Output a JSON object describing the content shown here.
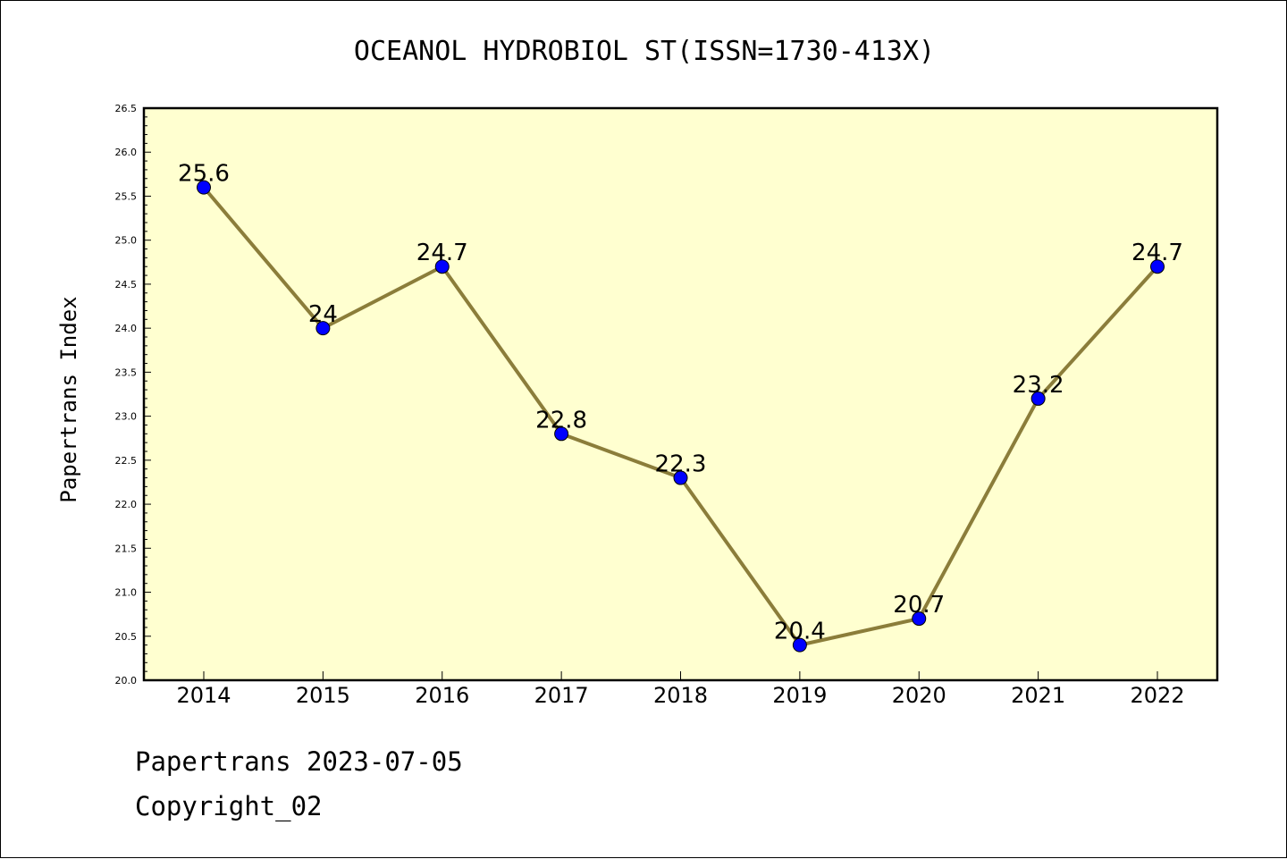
{
  "footer": {
    "line1": "Papertrans 2023-07-05",
    "line2": "Copyright_02"
  },
  "chart_data": {
    "type": "line",
    "title": "OCEANOL HYDROBIOL ST(ISSN=1730-413X)",
    "xlabel": "",
    "ylabel": "Papertrans Index",
    "x": [
      "2014",
      "2015",
      "2016",
      "2017",
      "2018",
      "2019",
      "2020",
      "2021",
      "2022"
    ],
    "series": [
      {
        "values": [
          25.6,
          24,
          24.7,
          22.8,
          22.3,
          20.4,
          20.7,
          23.2,
          24.7
        ],
        "data_labels": [
          "25.6",
          "24",
          "24.7",
          "22.8",
          "22.3",
          "20.4",
          "20.7",
          "23.2",
          "24.7"
        ],
        "line_color": "#8b7d3a",
        "marker_color": "#0000ff"
      }
    ],
    "ylim": [
      20.0,
      26.5
    ],
    "yticks": [
      "20.0",
      "20.5",
      "21.0",
      "21.5",
      "22.0",
      "22.5",
      "23.0",
      "23.5",
      "24.0",
      "24.5",
      "25.0",
      "25.5",
      "26.0",
      "26.5"
    ],
    "plot_background": "#ffffd0",
    "grid": false,
    "legend": "none"
  }
}
